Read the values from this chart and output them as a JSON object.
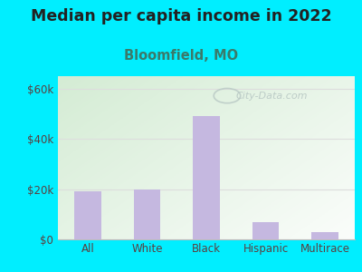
{
  "title": "Median per capita income in 2022",
  "subtitle": "Bloomfield, MO",
  "categories": [
    "All",
    "White",
    "Black",
    "Hispanic",
    "Multirace"
  ],
  "values": [
    19000,
    20000,
    49000,
    7000,
    3000
  ],
  "bar_color": "#c5b8e0",
  "background_outer": "#00eeff",
  "plot_bg_color_topleft": "#d4ecd4",
  "plot_bg_color_bottomright": "#f8f8ff",
  "title_color": "#222222",
  "subtitle_color": "#3a7a6a",
  "tick_label_color": "#5a4040",
  "ylim": [
    0,
    65000
  ],
  "yticks": [
    0,
    20000,
    40000,
    60000
  ],
  "ytick_labels": [
    "$0",
    "$20k",
    "$40k",
    "$60k"
  ],
  "watermark": "City-Data.com",
  "watermark_color": "#b8c8c4",
  "title_fontsize": 12.5,
  "subtitle_fontsize": 10.5,
  "gridline_color": "#dddddd"
}
